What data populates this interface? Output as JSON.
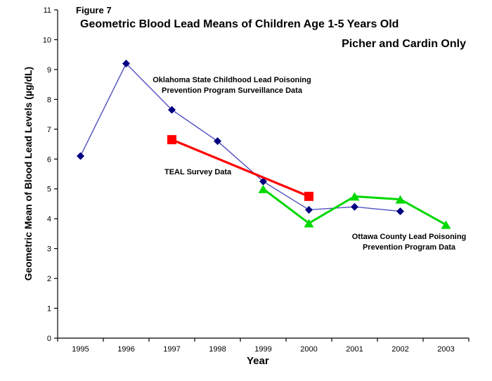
{
  "figure_label": "Figure 7",
  "title": {
    "line1": "Geometric Blood Lead Means of Children Age 1-5 Years Old",
    "line2": "Picher and Cardin Only"
  },
  "chart_data": {
    "type": "line",
    "title": "Geometric Blood Lead Means of Children Age 1-5 Years Old",
    "subtitle": "Picher and Cardin Only",
    "xlabel": "Year",
    "ylabel": "Geometric Mean of Blood Lead Levels (µg/dL)",
    "x": [
      "1995",
      "1996",
      "1997",
      "1998",
      "1999",
      "2000",
      "2001",
      "2002",
      "2003"
    ],
    "ylim": [
      0,
      11
    ],
    "yticks": [
      0,
      1,
      2,
      3,
      4,
      5,
      6,
      7,
      8,
      9,
      10,
      11
    ],
    "grid": false,
    "legend_position": "inline-annotations",
    "axis_color": "#000000",
    "series": [
      {
        "name": "Oklahoma State Childhood Lead Poisoning Prevention Program Surveillance Data",
        "label_lines": [
          "Oklahoma State Childhood Lead Poisoning",
          "Prevention Program Surveillance Data"
        ],
        "marker": "diamond",
        "line_color": "#4f4fc0",
        "marker_color": "#000080",
        "line_width": 1.4,
        "values": [
          6.1,
          9.2,
          7.65,
          6.6,
          5.25,
          4.3,
          4.4,
          4.25,
          null
        ]
      },
      {
        "name": "TEAL Survey Data",
        "label_lines": [
          "TEAL Survey Data"
        ],
        "marker": "square",
        "line_color": "#ff0000",
        "marker_color": "#ff0000",
        "line_width": 3.2,
        "values": [
          null,
          null,
          6.65,
          null,
          null,
          4.75,
          null,
          null,
          null
        ]
      },
      {
        "name": "Ottawa County Lead Poisoning Prevention Program Data",
        "label_lines": [
          "Ottawa County Lead Poisoning",
          "Prevention Program Data"
        ],
        "marker": "triangle",
        "line_color": "#00d800",
        "marker_color": "#00d800",
        "line_width": 3,
        "values": [
          null,
          null,
          null,
          null,
          5.0,
          3.85,
          4.75,
          4.65,
          3.8
        ]
      }
    ]
  }
}
